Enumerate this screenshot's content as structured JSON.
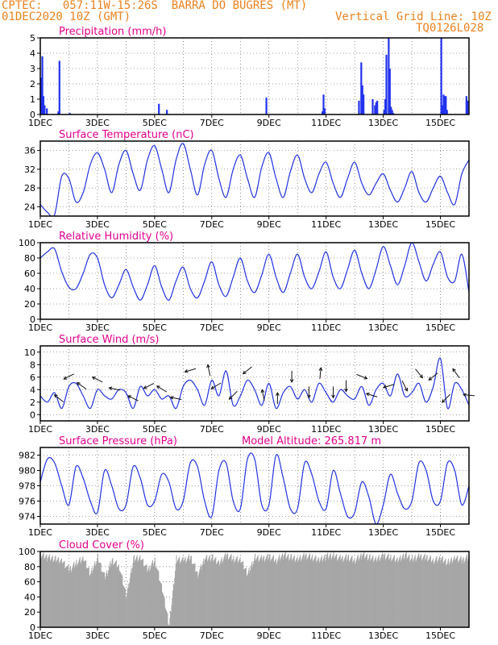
{
  "header": {
    "line1": "CPTEC:   057:11W-15:26S  BARRA DO BUGRES (MT)",
    "line2": "01DEC2020 10Z (GMT)",
    "grid_note": "Vertical Grid Line: 10Z",
    "code": "TQ0126L028",
    "altitude": "Model Altitude: 265.817 m"
  },
  "colors": {
    "header": "#e8821e",
    "title": "#e0008c",
    "line": "#2233dd",
    "bar": "#2233ee",
    "cloud": "#a6a6a6",
    "grid": "#444444"
  },
  "x_ticks": [
    "1DEC",
    "3DEC",
    "5DEC",
    "7DEC",
    "9DEC",
    "11DEC",
    "13DEC",
    "15DEC"
  ],
  "x_tick_days": [
    0,
    2,
    4,
    6,
    8,
    10,
    12,
    14
  ],
  "x_range_days": [
    0,
    15
  ],
  "chart_data": [
    {
      "id": "precip",
      "type": "bar",
      "title": "Precipitation (mm/h)",
      "ylim": [
        0,
        5
      ],
      "yticks": [
        0,
        1,
        2,
        3,
        4,
        5
      ],
      "x_days": [
        0.0,
        0.04,
        0.08,
        0.12,
        0.2,
        0.6,
        0.64,
        1.0,
        4.12,
        4.4,
        7.88,
        9.84,
        9.88,
        9.92,
        11.12,
        11.2,
        11.24,
        11.28,
        11.6,
        11.68,
        11.72,
        11.76,
        12.0,
        12.04,
        12.08,
        12.16,
        12.2,
        12.24,
        12.28,
        12.32,
        14.0,
        14.04,
        14.08,
        14.12,
        14.16,
        14.2,
        14.88,
        14.92
      ],
      "values": [
        2.4,
        3.8,
        1.2,
        0.6,
        0.4,
        0.2,
        3.5,
        0.1,
        0.7,
        0.3,
        1.1,
        0.2,
        1.3,
        0.4,
        0.9,
        3.4,
        1.9,
        1.3,
        1.0,
        0.6,
        0.8,
        0.9,
        0.3,
        1.0,
        3.9,
        5.0,
        3.0,
        0.5,
        0.3,
        0.1,
        5.0,
        0.6,
        1.3,
        1.2,
        1.2,
        0.3,
        1.2,
        0.9
      ]
    },
    {
      "id": "temp",
      "type": "line",
      "title": "Surface Temperature (nC)",
      "ylim": [
        22,
        38
      ],
      "yticks": [
        24,
        28,
        32,
        36
      ],
      "x_days": [
        0,
        0.25,
        0.5,
        0.75,
        1.0,
        1.25,
        1.5,
        1.75,
        2.0,
        2.25,
        2.5,
        2.75,
        3.0,
        3.25,
        3.5,
        3.75,
        4.0,
        4.25,
        4.5,
        4.75,
        5.0,
        5.25,
        5.5,
        5.75,
        6.0,
        6.25,
        6.5,
        6.75,
        7.0,
        7.25,
        7.5,
        7.75,
        8.0,
        8.25,
        8.5,
        8.75,
        9.0,
        9.25,
        9.5,
        9.75,
        10.0,
        10.25,
        10.5,
        10.75,
        11.0,
        11.25,
        11.5,
        11.75,
        12.0,
        12.25,
        12.5,
        12.75,
        13.0,
        13.25,
        13.5,
        13.75,
        14.0,
        14.25,
        14.5,
        14.75,
        15.0
      ],
      "values": [
        24.5,
        22.8,
        22.3,
        30.5,
        30.0,
        25.0,
        27.0,
        33.0,
        35.5,
        32.0,
        27.0,
        33.0,
        36.0,
        31.0,
        27.5,
        34.0,
        37.0,
        32.0,
        27.0,
        34.0,
        37.5,
        32.0,
        26.5,
        33.0,
        36.0,
        30.0,
        26.0,
        32.0,
        35.0,
        30.0,
        26.0,
        32.5,
        35.5,
        30.0,
        26.0,
        31.5,
        35.0,
        30.0,
        27.0,
        31.0,
        33.5,
        29.0,
        26.0,
        30.0,
        33.5,
        29.0,
        26.5,
        29.0,
        31.0,
        27.5,
        25.0,
        28.0,
        31.5,
        27.0,
        25.0,
        28.0,
        30.5,
        27.0,
        24.5,
        31.0,
        34.0
      ]
    },
    {
      "id": "rh",
      "type": "line",
      "title": "Relative Humidity (%)",
      "ylim": [
        0,
        100
      ],
      "yticks": [
        0,
        20,
        40,
        60,
        80,
        100
      ],
      "x_days": [
        0,
        0.25,
        0.5,
        0.75,
        1.0,
        1.25,
        1.5,
        1.75,
        2.0,
        2.25,
        2.5,
        2.75,
        3.0,
        3.25,
        3.5,
        3.75,
        4.0,
        4.25,
        4.5,
        4.75,
        5.0,
        5.25,
        5.5,
        5.75,
        6.0,
        6.25,
        6.5,
        6.75,
        7.0,
        7.25,
        7.5,
        7.75,
        8.0,
        8.25,
        8.5,
        8.75,
        9.0,
        9.25,
        9.5,
        9.75,
        10.0,
        10.25,
        10.5,
        10.75,
        11.0,
        11.25,
        11.5,
        11.75,
        12.0,
        12.25,
        12.5,
        12.75,
        13.0,
        13.25,
        13.5,
        13.75,
        14.0,
        14.25,
        14.5,
        14.75,
        15.0
      ],
      "values": [
        80,
        88,
        92,
        62,
        42,
        40,
        60,
        85,
        80,
        45,
        28,
        45,
        65,
        42,
        25,
        45,
        70,
        42,
        25,
        50,
        68,
        40,
        28,
        50,
        75,
        45,
        30,
        55,
        80,
        50,
        35,
        58,
        85,
        55,
        35,
        60,
        85,
        55,
        40,
        62,
        88,
        55,
        40,
        65,
        90,
        60,
        40,
        65,
        95,
        70,
        45,
        70,
        100,
        75,
        50,
        72,
        88,
        55,
        50,
        85,
        35
      ]
    },
    {
      "id": "wind",
      "type": "line",
      "title": "Surface Wind (m/s)",
      "ylim": [
        -1,
        11
      ],
      "yticks": [
        0,
        2,
        4,
        6,
        8,
        10
      ],
      "x_days": [
        0,
        0.25,
        0.5,
        0.75,
        1.0,
        1.25,
        1.5,
        1.75,
        2.0,
        2.25,
        2.5,
        2.75,
        3.0,
        3.25,
        3.5,
        3.75,
        4.0,
        4.25,
        4.5,
        4.75,
        5.0,
        5.25,
        5.5,
        5.75,
        6.0,
        6.25,
        6.5,
        6.75,
        7.0,
        7.25,
        7.5,
        7.75,
        8.0,
        8.25,
        8.5,
        8.75,
        9.0,
        9.25,
        9.5,
        9.75,
        10.0,
        10.25,
        10.5,
        10.75,
        11.0,
        11.25,
        11.5,
        11.75,
        12.0,
        12.25,
        12.5,
        12.75,
        13.0,
        13.25,
        13.5,
        13.75,
        14.0,
        14.25,
        14.5,
        14.75,
        15.0
      ],
      "values": [
        3.0,
        2.0,
        3.5,
        1.0,
        4.5,
        5.0,
        3.0,
        1.0,
        4.0,
        3.0,
        2.5,
        4.0,
        3.5,
        1.0,
        4.5,
        3.0,
        4.0,
        2.5,
        3.0,
        1.0,
        4.5,
        5.5,
        4.0,
        1.5,
        5.5,
        3.0,
        7.0,
        1.5,
        3.0,
        5.5,
        4.0,
        1.5,
        5.0,
        1.0,
        3.5,
        4.5,
        2.5,
        4.0,
        2.0,
        5.0,
        3.5,
        2.0,
        4.0,
        3.0,
        2.5,
        4.5,
        1.5,
        4.0,
        5.0,
        3.0,
        6.5,
        3.0,
        3.5,
        5.0,
        2.0,
        4.5,
        9.0,
        1.0,
        5.0,
        4.0,
        1.5
      ],
      "arrows": [
        {
          "day": 0.65,
          "u": -1,
          "v": 0.8
        },
        {
          "day": 1.0,
          "u": -1,
          "v": -0.5
        },
        {
          "day": 1.45,
          "u": -1,
          "v": 0.7
        },
        {
          "day": 2.0,
          "u": -1,
          "v": 0.5
        },
        {
          "day": 2.6,
          "u": -1,
          "v": 0.2
        },
        {
          "day": 3.25,
          "u": -1,
          "v": 0.5
        },
        {
          "day": 3.8,
          "u": -1,
          "v": -0.5
        },
        {
          "day": 4.25,
          "u": -1,
          "v": 0.6
        },
        {
          "day": 4.75,
          "u": -1,
          "v": 0.2
        },
        {
          "day": 5.25,
          "u": -1,
          "v": -0.3
        },
        {
          "day": 5.9,
          "u": -0.2,
          "v": 1
        },
        {
          "day": 6.15,
          "u": -1,
          "v": -0.6
        },
        {
          "day": 6.75,
          "u": -1,
          "v": -1
        },
        {
          "day": 7.25,
          "u": -1,
          "v": -0.8
        },
        {
          "day": 7.8,
          "u": -0.2,
          "v": 1
        },
        {
          "day": 8.3,
          "u": 0,
          "v": 1
        },
        {
          "day": 8.8,
          "u": 0,
          "v": -1
        },
        {
          "day": 9.4,
          "u": 0,
          "v": -1
        },
        {
          "day": 9.8,
          "u": 0.1,
          "v": 1
        },
        {
          "day": 10.25,
          "u": 0,
          "v": -1
        },
        {
          "day": 10.7,
          "u": 0,
          "v": -1
        },
        {
          "day": 11.25,
          "u": 1,
          "v": -0.4
        },
        {
          "day": 11.6,
          "u": -1,
          "v": 0.3
        },
        {
          "day": 12.2,
          "u": -1,
          "v": -0.3
        },
        {
          "day": 12.75,
          "u": 0.5,
          "v": -1
        },
        {
          "day": 13.25,
          "u": 0.8,
          "v": -1
        },
        {
          "day": 13.75,
          "u": -1,
          "v": -0.8
        },
        {
          "day": 14.2,
          "u": -1,
          "v": -1
        },
        {
          "day": 14.55,
          "u": -0.7,
          "v": 1
        },
        {
          "day": 15.0,
          "u": -1,
          "v": 0.1
        }
      ]
    },
    {
      "id": "pressure",
      "type": "line",
      "title": "Surface Pressure (hPa)",
      "ylim": [
        973,
        983
      ],
      "yticks": [
        974,
        976,
        978,
        980,
        982
      ],
      "x_days": [
        0,
        0.25,
        0.5,
        0.75,
        1.0,
        1.25,
        1.5,
        1.75,
        2.0,
        2.25,
        2.5,
        2.75,
        3.0,
        3.25,
        3.5,
        3.75,
        4.0,
        4.25,
        4.5,
        4.75,
        5.0,
        5.25,
        5.5,
        5.75,
        6.0,
        6.25,
        6.5,
        6.75,
        7.0,
        7.25,
        7.5,
        7.75,
        8.0,
        8.25,
        8.5,
        8.75,
        9.0,
        9.25,
        9.5,
        9.75,
        10.0,
        10.25,
        10.5,
        10.75,
        11.0,
        11.25,
        11.5,
        11.75,
        12.0,
        12.25,
        12.5,
        12.75,
        13.0,
        13.25,
        13.5,
        13.75,
        14.0,
        14.25,
        14.5,
        14.75,
        15.0
      ],
      "values": [
        978.5,
        981.5,
        981.0,
        978.0,
        975.5,
        980.5,
        979.0,
        976.0,
        974.5,
        980.0,
        978.0,
        975.0,
        975.5,
        980.5,
        979.0,
        975.5,
        976.0,
        979.5,
        978.5,
        975.0,
        976.0,
        981.0,
        980.5,
        976.0,
        974.0,
        980.0,
        981.0,
        976.0,
        975.0,
        981.5,
        981.5,
        975.5,
        975.5,
        982.0,
        979.0,
        975.0,
        975.0,
        981.0,
        979.5,
        976.0,
        975.0,
        980.0,
        977.0,
        974.0,
        974.5,
        978.5,
        976.5,
        973.0,
        975.5,
        979.5,
        977.0,
        975.0,
        976.0,
        981.0,
        980.0,
        976.0,
        976.0,
        981.0,
        980.0,
        975.5,
        978.0
      ]
    },
    {
      "id": "cloud",
      "type": "area",
      "title": "Cloud Cover (%)",
      "ylim": [
        0,
        100
      ],
      "yticks": [
        0,
        20,
        40,
        60,
        80,
        100
      ],
      "x_days": [
        0,
        0.25,
        0.5,
        0.75,
        1.0,
        1.25,
        1.5,
        1.75,
        2.0,
        2.25,
        2.5,
        2.75,
        3.0,
        3.25,
        3.5,
        3.75,
        4.0,
        4.25,
        4.5,
        4.75,
        5.0,
        5.25,
        5.5,
        5.75,
        6.0,
        6.25,
        6.5,
        6.75,
        7.0,
        7.25,
        7.5,
        7.75,
        8.0,
        8.25,
        8.5,
        8.75,
        9.0,
        9.25,
        9.5,
        9.75,
        10.0,
        10.25,
        10.5,
        10.75,
        11.0,
        11.25,
        11.5,
        11.75,
        12.0,
        12.25,
        12.5,
        12.75,
        13.0,
        13.25,
        13.5,
        13.75,
        14.0,
        14.25,
        14.5,
        14.75,
        15.0
      ],
      "values": [
        95,
        92,
        90,
        88,
        75,
        85,
        90,
        70,
        92,
        65,
        88,
        80,
        40,
        90,
        92,
        75,
        88,
        50,
        2,
        90,
        88,
        92,
        70,
        90,
        92,
        85,
        95,
        90,
        88,
        70,
        92,
        90,
        93,
        88,
        95,
        92,
        90,
        94,
        92,
        88,
        93,
        95,
        90,
        92,
        88,
        95,
        92,
        90,
        94,
        92,
        88,
        95,
        90,
        93,
        92,
        88,
        90,
        85,
        92,
        88,
        93
      ]
    }
  ]
}
